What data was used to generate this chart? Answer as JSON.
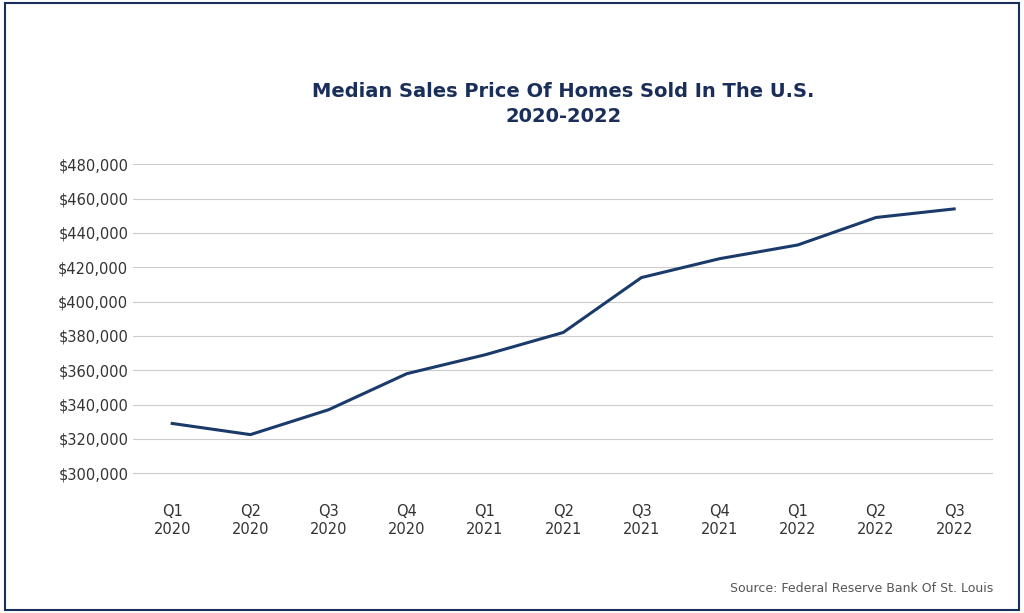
{
  "title_line1": "Median Sales Price Of Homes Sold In The U.S.",
  "title_line2": "2020-2022",
  "x_labels": [
    "Q1\n2020",
    "Q2\n2020",
    "Q3\n2020",
    "Q4\n2020",
    "Q1\n2021",
    "Q2\n2021",
    "Q3\n2021",
    "Q4\n2021",
    "Q1\n2022",
    "Q2\n2022",
    "Q3\n2022"
  ],
  "values": [
    329000,
    322500,
    337000,
    358000,
    369000,
    382000,
    414000,
    425000,
    433000,
    449000,
    454000
  ],
  "line_color": "#1a3a6b",
  "line_width": 2.2,
  "ylim": [
    290000,
    490000
  ],
  "yticks": [
    300000,
    320000,
    340000,
    360000,
    380000,
    400000,
    420000,
    440000,
    460000,
    480000
  ],
  "grid_color": "#cccccc",
  "background_color": "#ffffff",
  "title_fontsize": 14,
  "title_color": "#1a2e5a",
  "tick_fontsize": 10.5,
  "tick_color": "#333333",
  "source_text": "Source: Federal Reserve Bank Of St. Louis",
  "source_fontsize": 9,
  "border_color": "#1a2e5a",
  "border_width": 1.5
}
